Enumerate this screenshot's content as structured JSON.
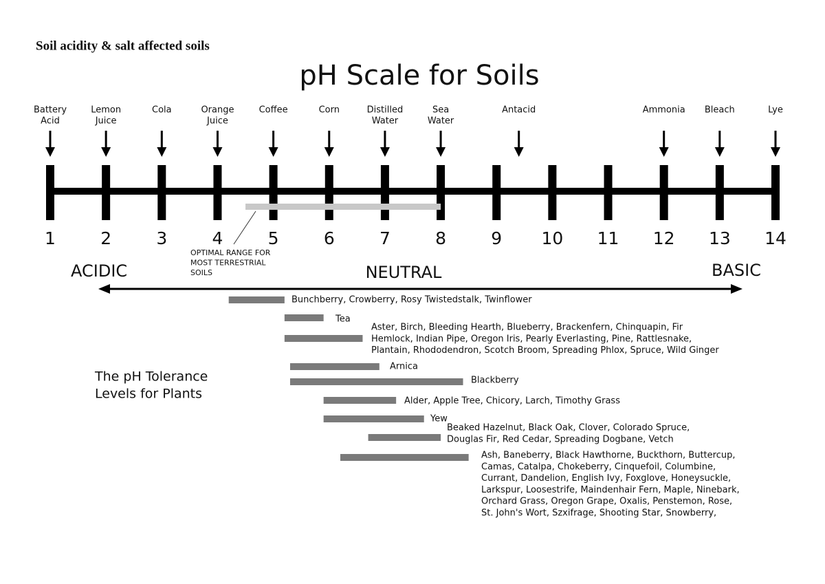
{
  "header": {
    "title": "Soil acidity & salt affected soils"
  },
  "diagram": {
    "title": "pH Scale for Soils",
    "scale": {
      "ticks": [
        1,
        2,
        3,
        4,
        5,
        6,
        7,
        8,
        9,
        10,
        11,
        12,
        13,
        14
      ],
      "range": [
        1,
        14
      ]
    },
    "substances": [
      {
        "lines": [
          "Battery",
          "Acid"
        ],
        "ph": 1
      },
      {
        "lines": [
          "Lemon",
          "Juice"
        ],
        "ph": 2
      },
      {
        "lines": [
          "Cola"
        ],
        "ph": 3
      },
      {
        "lines": [
          "Orange",
          "Juice"
        ],
        "ph": 4
      },
      {
        "lines": [
          "Coffee"
        ],
        "ph": 5
      },
      {
        "lines": [
          "Corn"
        ],
        "ph": 6
      },
      {
        "lines": [
          "Distilled",
          "Water"
        ],
        "ph": 7
      },
      {
        "lines": [
          "Sea",
          "Water"
        ],
        "ph": 8
      },
      {
        "lines": [
          "Antacid"
        ],
        "ph": 9.4
      },
      {
        "lines": [
          "Ammonia"
        ],
        "ph": 12
      },
      {
        "lines": [
          "Bleach"
        ],
        "ph": 13
      },
      {
        "lines": [
          "Lye"
        ],
        "ph": 14
      }
    ],
    "optimal": {
      "lines": [
        "OPTIMAL RANGE FOR",
        "MOST TERRESTRIAL",
        "SOILS"
      ],
      "range": [
        4.5,
        8
      ]
    },
    "zones": {
      "acidic": "ACIDIC",
      "neutral": "NEUTRAL",
      "basic": "BASIC"
    },
    "tolerance_title": [
      "The pH Tolerance",
      "Levels for Plants"
    ],
    "plants": [
      {
        "range": [
          4.2,
          5.2
        ],
        "lines": [
          "Bunchberry, Crowberry, Rosy Twistedstalk, Twinflower"
        ]
      },
      {
        "range": [
          5.2,
          5.9
        ],
        "lines": [
          "Tea"
        ]
      },
      {
        "range": [
          5.2,
          6.6
        ],
        "lines": [
          "Aster, Birch, Bleeding Hearth, Blueberry, Brackenfern, Chinquapin, Fir",
          "Hemlock, Indian Pipe, Oregon Iris, Pearly Everlasting, Pine, Rattlesnake,",
          "Plantain, Rhododendron, Scotch Broom, Spreading Phlox, Spruce, Wild Ginger"
        ]
      },
      {
        "range": [
          5.3,
          6.9
        ],
        "lines": [
          "Arnica"
        ]
      },
      {
        "range": [
          5.3,
          8.4
        ],
        "lines": [
          "Blackberry"
        ]
      },
      {
        "range": [
          5.9,
          7.2
        ],
        "lines": [
          "Alder, Apple Tree, Chicory, Larch, Timothy Grass"
        ]
      },
      {
        "range": [
          5.9,
          7.7
        ],
        "lines": [
          "Yew"
        ]
      },
      {
        "range": [
          6.7,
          8.0
        ],
        "lines": [
          "Beaked Hazelnut, Black Oak, Clover, Colorado Spruce,",
          "Douglas Fir, Red Cedar, Spreading Dogbane, Vetch"
        ]
      },
      {
        "range": [
          6.2,
          8.5
        ],
        "lines": [
          "Ash, Baneberry, Black Hawthorne, Buckthorn, Buttercup,",
          "Camas, Catalpa, Chokeberry, Cinquefoil, Columbine,",
          "Currant, Dandelion, English Ivy, Foxglove, Honeysuckle,",
          "Larkspur, Loosestrife, Maindenhair Fern, Maple, Ninebark,",
          "Orchard Grass, Oregon Grape, Oxalis, Penstemon, Rose,",
          "St. John's Wort, Szxifrage, Shooting Star, Snowberry,"
        ]
      }
    ]
  }
}
